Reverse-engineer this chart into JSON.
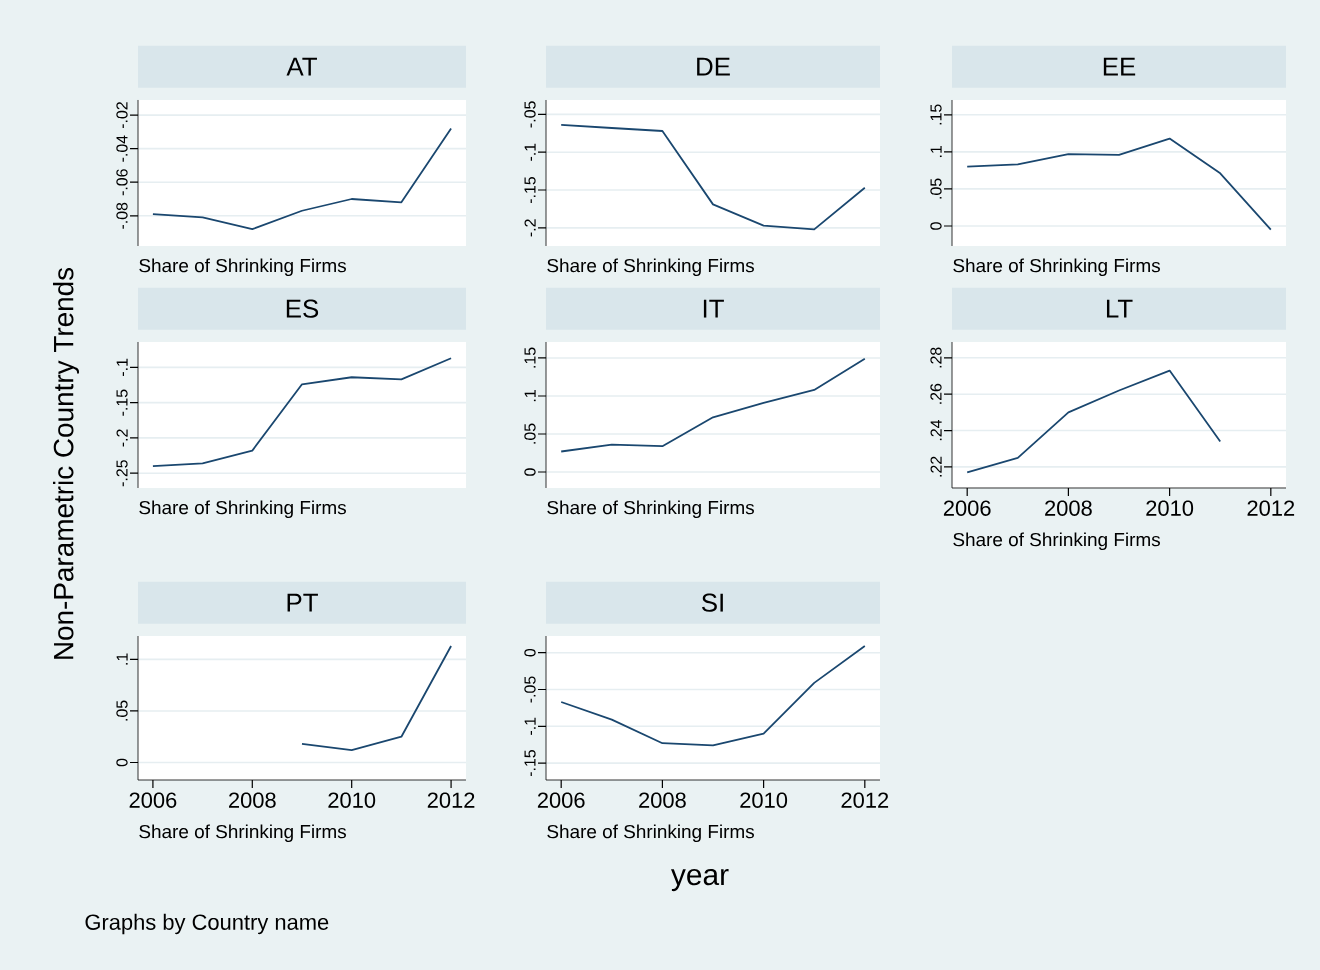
{
  "chart_data": [
    {
      "type": "line",
      "title": "AT",
      "xlabel": "Share of Shrinking Firms",
      "color": "#1a476f",
      "grid": "y",
      "tick_labels": "y",
      "x": [
        2006,
        2007,
        2008,
        2009,
        2010,
        2011,
        2012
      ],
      "values": [
        -0.079,
        -0.081,
        -0.088,
        -0.077,
        -0.07,
        -0.072,
        -0.028
      ],
      "xlim": [
        2005.7,
        2012.3
      ],
      "ylim": [
        -0.098,
        -0.011
      ],
      "yticks": [
        {
          "value": -0.08,
          "label": "-.08"
        },
        {
          "value": -0.06,
          "label": "-.06"
        },
        {
          "value": -0.04,
          "label": "-.04"
        },
        {
          "value": -0.02,
          "label": "-.02"
        }
      ]
    },
    {
      "type": "line",
      "title": "DE",
      "xlabel": "Share of Shrinking Firms",
      "color": "#1a476f",
      "grid": "y",
      "tick_labels": "y",
      "x": [
        2006,
        2007,
        2008,
        2009,
        2010,
        2011,
        2012
      ],
      "values": [
        -0.064,
        -0.068,
        -0.072,
        -0.169,
        -0.197,
        -0.202,
        -0.147
      ],
      "xlim": [
        2005.7,
        2012.3
      ],
      "ylim": [
        -0.224,
        -0.031
      ],
      "yticks": [
        {
          "value": -0.2,
          "label": "-.2"
        },
        {
          "value": -0.15,
          "label": "-.15"
        },
        {
          "value": -0.1,
          "label": "-.1"
        },
        {
          "value": -0.05,
          "label": "-.05"
        }
      ]
    },
    {
      "type": "line",
      "title": "EE",
      "xlabel": "Share of Shrinking Firms",
      "color": "#1a476f",
      "grid": "y",
      "tick_labels": "y",
      "x": [
        2006,
        2007,
        2008,
        2009,
        2010,
        2011,
        2012
      ],
      "values": [
        0.08,
        0.083,
        0.097,
        0.096,
        0.118,
        0.071,
        -0.005
      ],
      "xlim": [
        2005.7,
        2012.3
      ],
      "ylim": [
        -0.027,
        0.17
      ],
      "yticks": [
        0,
        {
          "value": 0.05,
          "label": ".05"
        },
        {
          "value": 0.1,
          "label": ".1"
        },
        {
          "value": 0.15,
          "label": ".15"
        }
      ]
    },
    {
      "type": "line",
      "title": "ES",
      "xlabel": "Share of Shrinking Firms",
      "color": "#1a476f",
      "grid": "y",
      "tick_labels": "y",
      "x": [
        2006,
        2007,
        2008,
        2009,
        2010,
        2011,
        2012
      ],
      "values": [
        -0.24,
        -0.236,
        -0.218,
        -0.124,
        -0.114,
        -0.117,
        -0.087
      ],
      "xlim": [
        2005.7,
        2012.3
      ],
      "ylim": [
        -0.271,
        -0.064
      ],
      "yticks": [
        {
          "value": -0.25,
          "label": "-.25"
        },
        {
          "value": -0.2,
          "label": "-.2"
        },
        {
          "value": -0.15,
          "label": "-.15"
        },
        {
          "value": -0.1,
          "label": "-.1"
        }
      ]
    },
    {
      "type": "line",
      "title": "IT",
      "xlabel": "Share of Shrinking Firms",
      "color": "#1a476f",
      "grid": "y",
      "tick_labels": "y",
      "x": [
        2006,
        2007,
        2008,
        2009,
        2010,
        2011,
        2012
      ],
      "values": [
        0.027,
        0.036,
        0.034,
        0.072,
        0.091,
        0.108,
        0.149
      ],
      "xlim": [
        2005.7,
        2012.3
      ],
      "ylim": [
        -0.021,
        0.171
      ],
      "yticks": [
        0,
        {
          "value": 0.05,
          "label": ".05"
        },
        {
          "value": 0.1,
          "label": ".1"
        },
        {
          "value": 0.15,
          "label": ".15"
        }
      ]
    },
    {
      "type": "line",
      "title": "LT",
      "xlabel": "Share of Shrinking Firms",
      "color": "#1a476f",
      "grid": "y",
      "x": [
        2006,
        2007,
        2008,
        2009,
        2010,
        2011
      ],
      "values": [
        0.217,
        0.225,
        0.25,
        0.262,
        0.273,
        0.234
      ],
      "xlim": [
        2005.7,
        2012.3
      ],
      "xticks": [
        2006,
        2008,
        2010,
        2012
      ],
      "ylim": [
        0.2084,
        0.2887
      ],
      "yticks": [
        {
          "value": 0.22,
          "label": ".22"
        },
        {
          "value": 0.24,
          "label": ".24"
        },
        {
          "value": 0.26,
          "label": ".26"
        },
        {
          "value": 0.28,
          "label": ".28"
        }
      ]
    },
    {
      "type": "line",
      "title": "PT",
      "xlabel": "Share of Shrinking Firms",
      "color": "#1a476f",
      "grid": "y",
      "x": [
        2009,
        2010,
        2011,
        2012
      ],
      "values": [
        0.018,
        0.012,
        0.025,
        0.113
      ],
      "xlim": [
        2005.7,
        2012.3
      ],
      "xticks": [
        2006,
        2008,
        2010,
        2012
      ],
      "ylim": [
        -0.017,
        0.1227
      ],
      "yticks": [
        0,
        {
          "value": 0.05,
          "label": ".05"
        },
        {
          "value": 0.1,
          "label": ".1"
        }
      ]
    },
    {
      "type": "line",
      "title": "SI",
      "xlabel": "Share of Shrinking Firms",
      "color": "#1a476f",
      "grid": "y",
      "x": [
        2006,
        2007,
        2008,
        2009,
        2010,
        2011,
        2012
      ],
      "values": [
        -0.067,
        -0.091,
        -0.123,
        -0.126,
        -0.11,
        -0.041,
        0.009
      ],
      "xlim": [
        2005.7,
        2012.3
      ],
      "xticks": [
        2006,
        2008,
        2010,
        2012
      ],
      "ylim": [
        -0.173,
        0.0227
      ],
      "yticks": [
        {
          "value": -0.15,
          "label": "-.15"
        },
        {
          "value": -0.1,
          "label": "-.1"
        },
        {
          "value": -0.05,
          "label": "-.05"
        },
        0
      ]
    },
    {
      "type": "other",
      "ylabel": "Non-Parametric Country Trends",
      "xlabel": "year",
      "annotations": [
        "Graphs by Country name"
      ]
    }
  ]
}
